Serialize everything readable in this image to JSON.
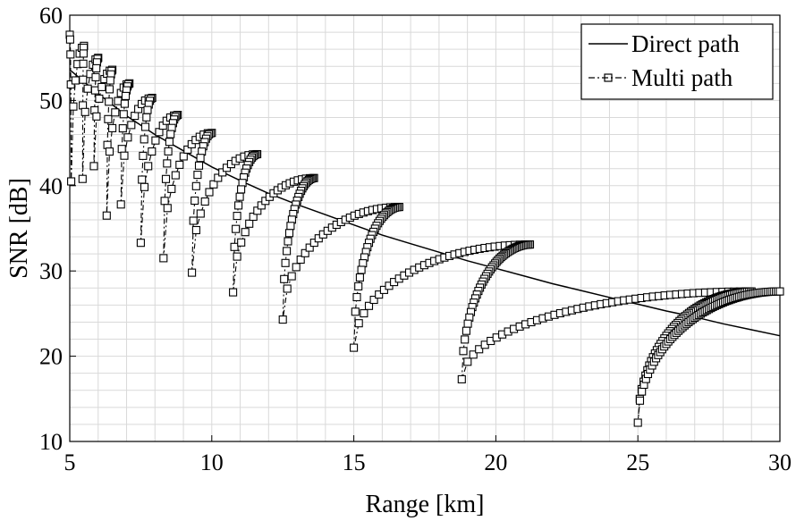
{
  "chart_data": {
    "type": "line",
    "xlabel": "Range [km]",
    "ylabel": "SNR [dB]",
    "xlim": [
      5,
      30
    ],
    "ylim": [
      10,
      60
    ],
    "xticks": [
      5,
      10,
      15,
      20,
      25,
      30
    ],
    "yticks": [
      10,
      20,
      30,
      40,
      50,
      60
    ],
    "grid": true,
    "minor_grid": true,
    "legend_position": "top-right",
    "series": [
      {
        "name": "Direct path",
        "style": "solid",
        "color": "#000000",
        "x": [
          5,
          6,
          7,
          8,
          9,
          10,
          11,
          12,
          13,
          14,
          15,
          16,
          17,
          18,
          19,
          20,
          21,
          22,
          23,
          24,
          25,
          26,
          27,
          28,
          29,
          30
        ],
        "values": [
          53.6,
          50.8,
          48.2,
          46.0,
          44.1,
          42.2,
          40.6,
          39.1,
          37.8,
          36.6,
          35.4,
          34.2,
          33.2,
          32.2,
          31.2,
          30.3,
          29.4,
          28.5,
          27.7,
          26.9,
          26.1,
          25.3,
          24.6,
          23.8,
          23.1,
          22.4
        ]
      },
      {
        "name": "Multi path",
        "style": "dash-dot",
        "marker": "square",
        "color": "#000000",
        "peaks": [
          [
            5.0,
            57.7
          ],
          [
            5.5,
            56.4
          ],
          [
            6.0,
            55.0
          ],
          [
            6.5,
            53.6
          ],
          [
            7.1,
            52.0
          ],
          [
            7.9,
            50.3
          ],
          [
            8.8,
            48.3
          ],
          [
            10.0,
            46.2
          ],
          [
            11.6,
            43.7
          ],
          [
            13.6,
            40.9
          ],
          [
            16.6,
            37.5
          ],
          [
            21.2,
            33.1
          ],
          [
            29.0,
            27.6
          ]
        ],
        "nulls": [
          [
            5.05,
            40.5
          ],
          [
            5.45,
            40.8
          ],
          [
            5.85,
            42.3
          ],
          [
            6.3,
            36.5
          ],
          [
            6.8,
            37.8
          ],
          [
            7.5,
            33.3
          ],
          [
            8.3,
            31.5
          ],
          [
            9.3,
            29.8
          ],
          [
            10.75,
            27.5
          ],
          [
            12.5,
            24.3
          ],
          [
            15.0,
            21.0
          ],
          [
            18.8,
            17.3
          ],
          [
            25.0,
            12.2
          ]
        ],
        "markers_in_drop": [
          4,
          6,
          7,
          8,
          9,
          10,
          12,
          14,
          18,
          24,
          30,
          45,
          60
        ],
        "markers_in_rise": [
          6,
          6,
          7,
          8,
          9,
          10,
          12,
          15,
          20,
          26,
          35,
          50,
          70
        ]
      }
    ]
  }
}
